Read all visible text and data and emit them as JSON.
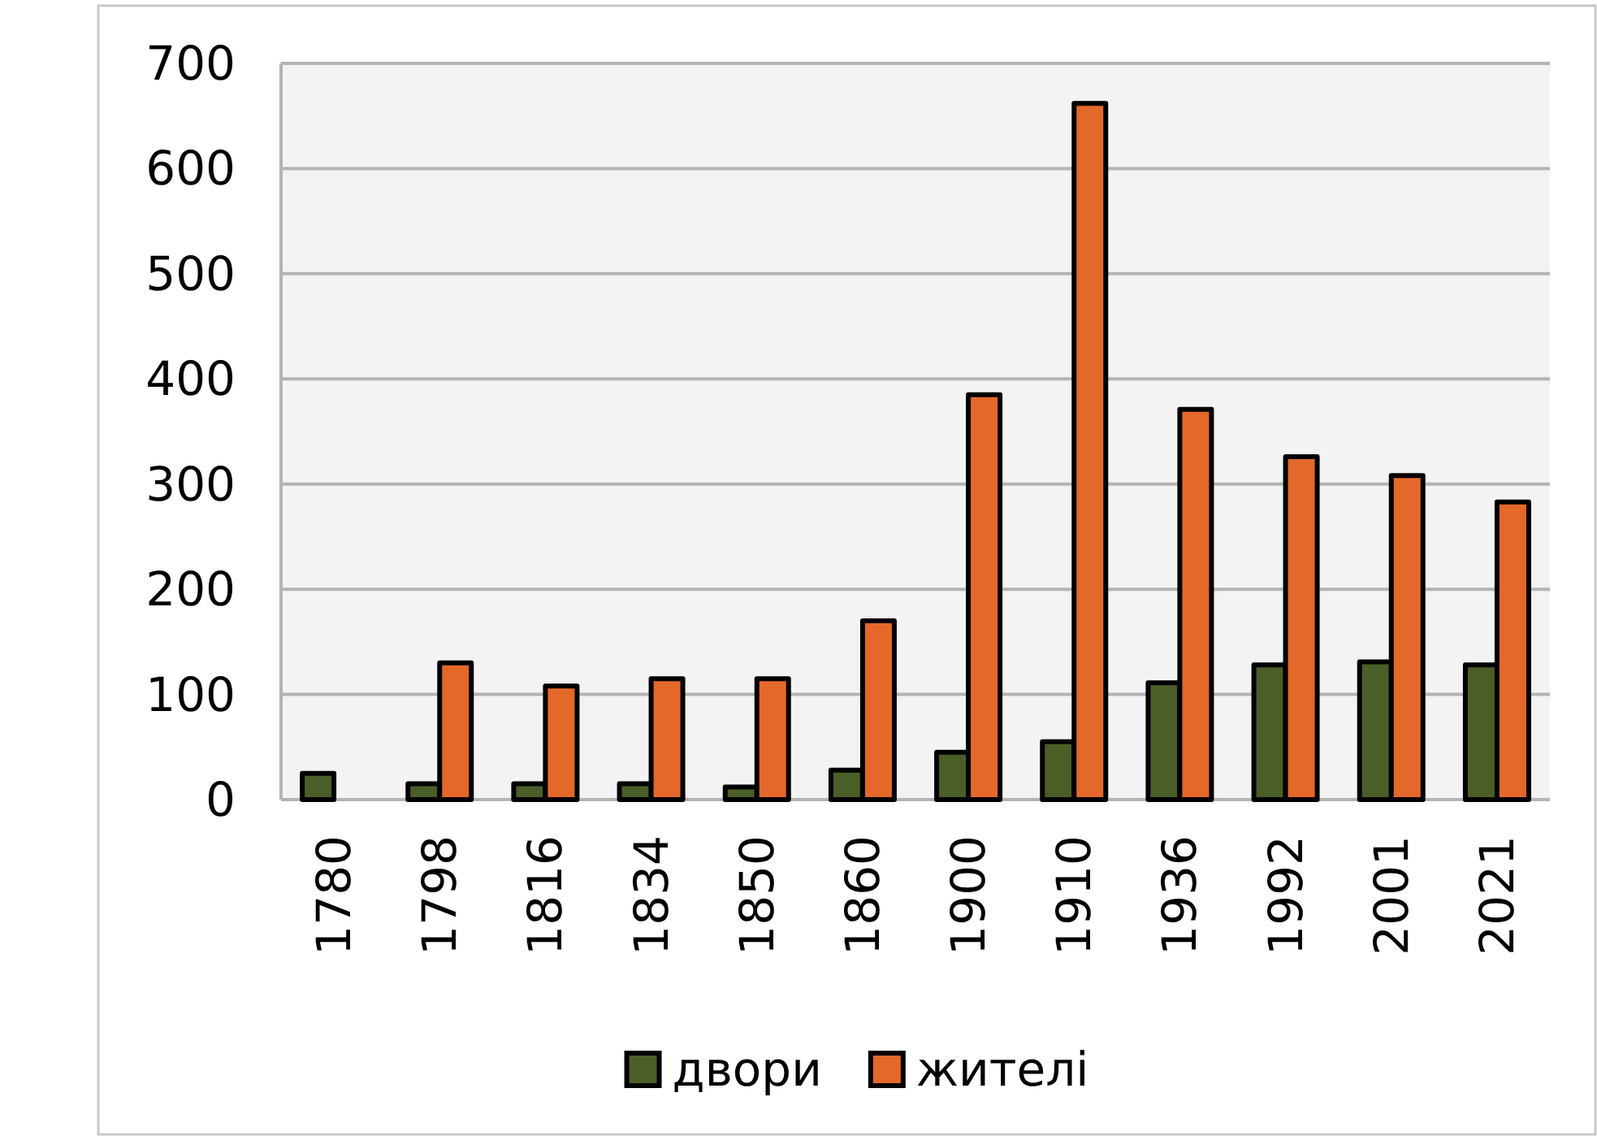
{
  "chart_data": {
    "type": "bar",
    "categories": [
      "1780",
      "1798",
      "1816",
      "1834",
      "1850",
      "1860",
      "1900",
      "1910",
      "1936",
      "1992",
      "2001",
      "2021"
    ],
    "series": [
      {
        "name": "двори",
        "color": "#4b5e28",
        "values": [
          25,
          15,
          15,
          15,
          12,
          28,
          45,
          55,
          111,
          128,
          131,
          128
        ]
      },
      {
        "name": "жителі",
        "color": "#e4682a",
        "values": [
          null,
          130,
          108,
          115,
          115,
          170,
          385,
          662,
          371,
          326,
          308,
          283
        ]
      }
    ],
    "ylim": [
      0,
      700
    ],
    "yticks": [
      0,
      100,
      200,
      300,
      400,
      500,
      600,
      700
    ],
    "grid": "y",
    "legend": "bottom"
  }
}
